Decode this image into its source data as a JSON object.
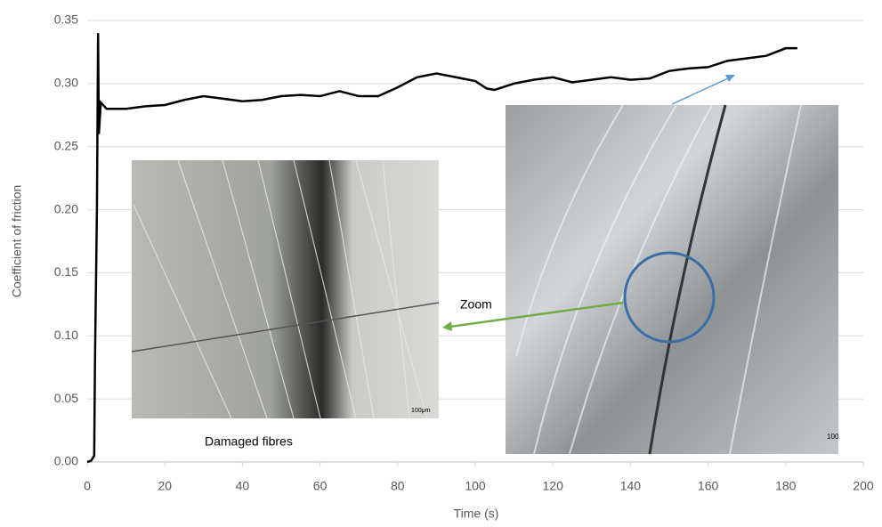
{
  "chart_data": {
    "type": "line",
    "x_label": "Time (s)",
    "y_label": "Coefficient of friction",
    "x": [
      0,
      1,
      1.8,
      2,
      2.5,
      2.8,
      3,
      3.5,
      5,
      10,
      15,
      20,
      25,
      30,
      35,
      40,
      45,
      50,
      55,
      60,
      65,
      70,
      75,
      80,
      85,
      90,
      95,
      100,
      103,
      105,
      110,
      115,
      120,
      125,
      130,
      135,
      140,
      145,
      150,
      155,
      160,
      165,
      170,
      175,
      180,
      183
    ],
    "series": [
      {
        "color": "#000000",
        "values": [
          0,
          0.001,
          0.005,
          0.08,
          0.2,
          0.34,
          0.26,
          0.285,
          0.28,
          0.28,
          0.282,
          0.283,
          0.287,
          0.29,
          0.288,
          0.286,
          0.287,
          0.29,
          0.291,
          0.29,
          0.294,
          0.29,
          0.29,
          0.297,
          0.305,
          0.308,
          0.305,
          0.302,
          0.296,
          0.295,
          0.3,
          0.303,
          0.305,
          0.301,
          0.303,
          0.305,
          0.303,
          0.304,
          0.31,
          0.312,
          0.313,
          0.318,
          0.32,
          0.322,
          0.328,
          0.328
        ]
      }
    ],
    "xlim": [
      0,
      200
    ],
    "xticks": [
      0,
      20,
      40,
      60,
      80,
      100,
      120,
      140,
      160,
      180,
      200
    ],
    "ylim": [
      0,
      0.35
    ],
    "yticks": [
      {
        "value": 0,
        "label": "0.00"
      },
      0.05,
      {
        "value": 0.1,
        "label": "0.10"
      },
      0.15,
      {
        "value": 0.2,
        "label": "0.20"
      },
      0.25,
      {
        "value": 0.3,
        "label": "0.30"
      },
      0.35
    ],
    "grid": true,
    "annotations": [
      "Zoom",
      "Damaged fibres",
      "100μm",
      "100"
    ]
  }
}
